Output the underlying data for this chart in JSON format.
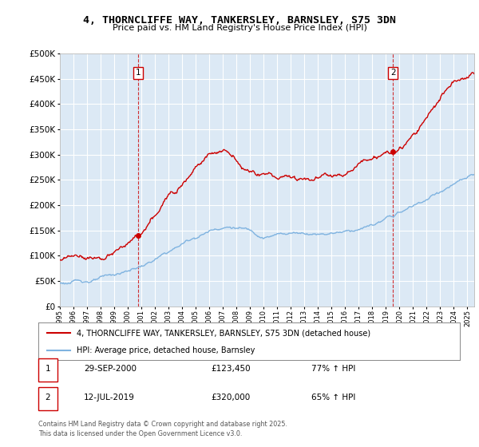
{
  "title": "4, THORNCLIFFE WAY, TANKERSLEY, BARNSLEY, S75 3DN",
  "subtitle": "Price paid vs. HM Land Registry's House Price Index (HPI)",
  "plot_bg_color": "#dce9f5",
  "hpi_color": "#7fb3e0",
  "price_color": "#cc0000",
  "ylim": [
    0,
    500000
  ],
  "yticks": [
    0,
    50000,
    100000,
    150000,
    200000,
    250000,
    300000,
    350000,
    400000,
    450000,
    500000
  ],
  "xlim_start": 1995.0,
  "xlim_end": 2025.5,
  "sale1_year": 2000.75,
  "sale1_price": 123450,
  "sale2_year": 2019.53,
  "sale2_price": 320000,
  "legend_line1": "4, THORNCLIFFE WAY, TANKERSLEY, BARNSLEY, S75 3DN (detached house)",
  "legend_line2": "HPI: Average price, detached house, Barnsley",
  "note1_date": "29-SEP-2000",
  "note1_price": "£123,450",
  "note1_hpi": "77% ↑ HPI",
  "note2_date": "12-JUL-2019",
  "note2_price": "£320,000",
  "note2_hpi": "65% ↑ HPI",
  "footer": "Contains HM Land Registry data © Crown copyright and database right 2025.\nThis data is licensed under the Open Government Licence v3.0."
}
